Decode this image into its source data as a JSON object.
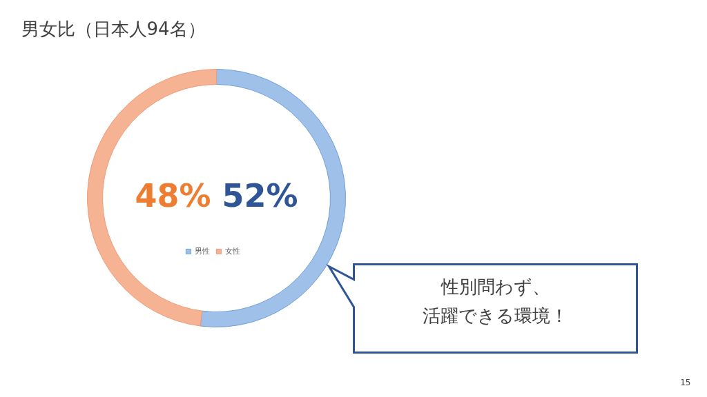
{
  "chart_data": {
    "type": "donut",
    "title": "男女比（日本人94名）",
    "categories": [
      "男性",
      "女性"
    ],
    "values": [
      52,
      48
    ],
    "colors": [
      "#9fc0e8",
      "#f5b394"
    ],
    "value_labels": [
      "52%",
      "48%"
    ],
    "legend": "bottom",
    "annotations": [
      "性別問わず、活躍できる環境！",
      "15"
    ]
  }
}
